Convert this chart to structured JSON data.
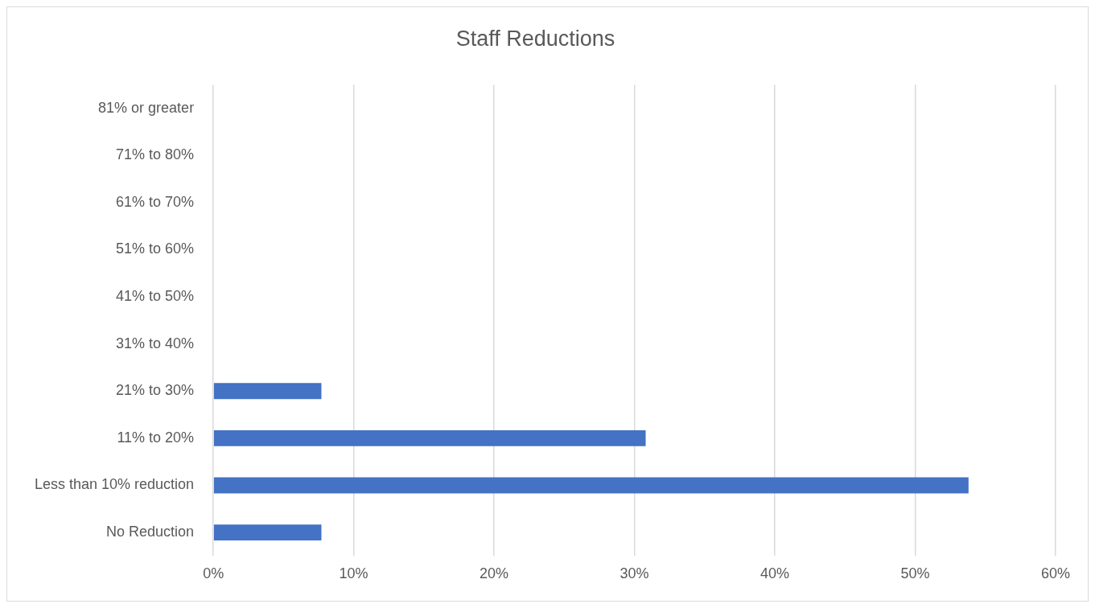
{
  "chart_data": {
    "type": "bar",
    "title": "Staff Reductions",
    "orientation": "horizontal",
    "categories": [
      "81% or greater",
      "71% to 80%",
      "61% to 70%",
      "51% to 60%",
      "41% to 50%",
      "31% to 40%",
      "21% to 30%",
      "11% to 20%",
      "Less than 10% reduction",
      "No Reduction"
    ],
    "values": [
      0,
      0,
      0,
      0,
      0,
      0,
      7.7,
      30.8,
      53.8,
      7.7
    ],
    "color": "#4472c4",
    "xlim": [
      0,
      60
    ],
    "xticks": [
      {
        "value": 0,
        "label": "0%"
      },
      {
        "value": 10,
        "label": "10%"
      },
      {
        "value": 20,
        "label": "20%"
      },
      {
        "value": 30,
        "label": "30%"
      },
      {
        "value": 40,
        "label": "40%"
      },
      {
        "value": 50,
        "label": "50%"
      },
      {
        "value": 60,
        "label": "60%"
      }
    ],
    "grid": "x",
    "legend": false
  }
}
